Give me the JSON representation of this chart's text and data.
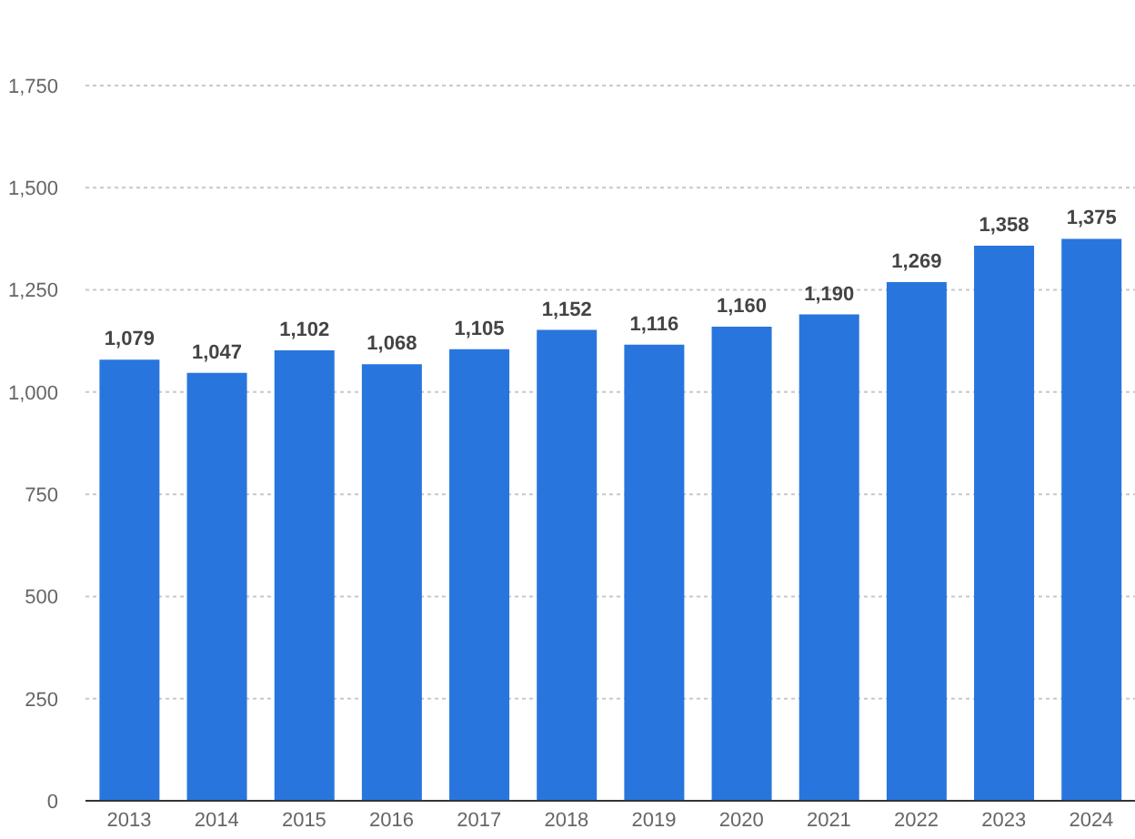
{
  "chart_data": {
    "type": "bar",
    "categories": [
      "2013",
      "2014",
      "2015",
      "2016",
      "2017",
      "2018",
      "2019",
      "2020",
      "2021",
      "2022",
      "2023",
      "2024"
    ],
    "values": [
      1079,
      1047,
      1102,
      1068,
      1105,
      1152,
      1116,
      1160,
      1190,
      1269,
      1358,
      1375
    ],
    "value_labels": [
      "1,079",
      "1,047",
      "1,102",
      "1,068",
      "1,105",
      "1,152",
      "1,116",
      "1,160",
      "1,190",
      "1,269",
      "1,358",
      "1,375"
    ],
    "color": "#2876dd",
    "ylim": [
      0,
      1750
    ],
    "yticks": [
      0,
      250,
      500,
      750,
      {
        "value": 1000,
        "label": "1,000"
      },
      {
        "value": 1250,
        "label": "1,250"
      },
      {
        "value": 1500,
        "label": "1,500"
      },
      {
        "value": 1750,
        "label": "1,750"
      }
    ],
    "grid": "y"
  }
}
